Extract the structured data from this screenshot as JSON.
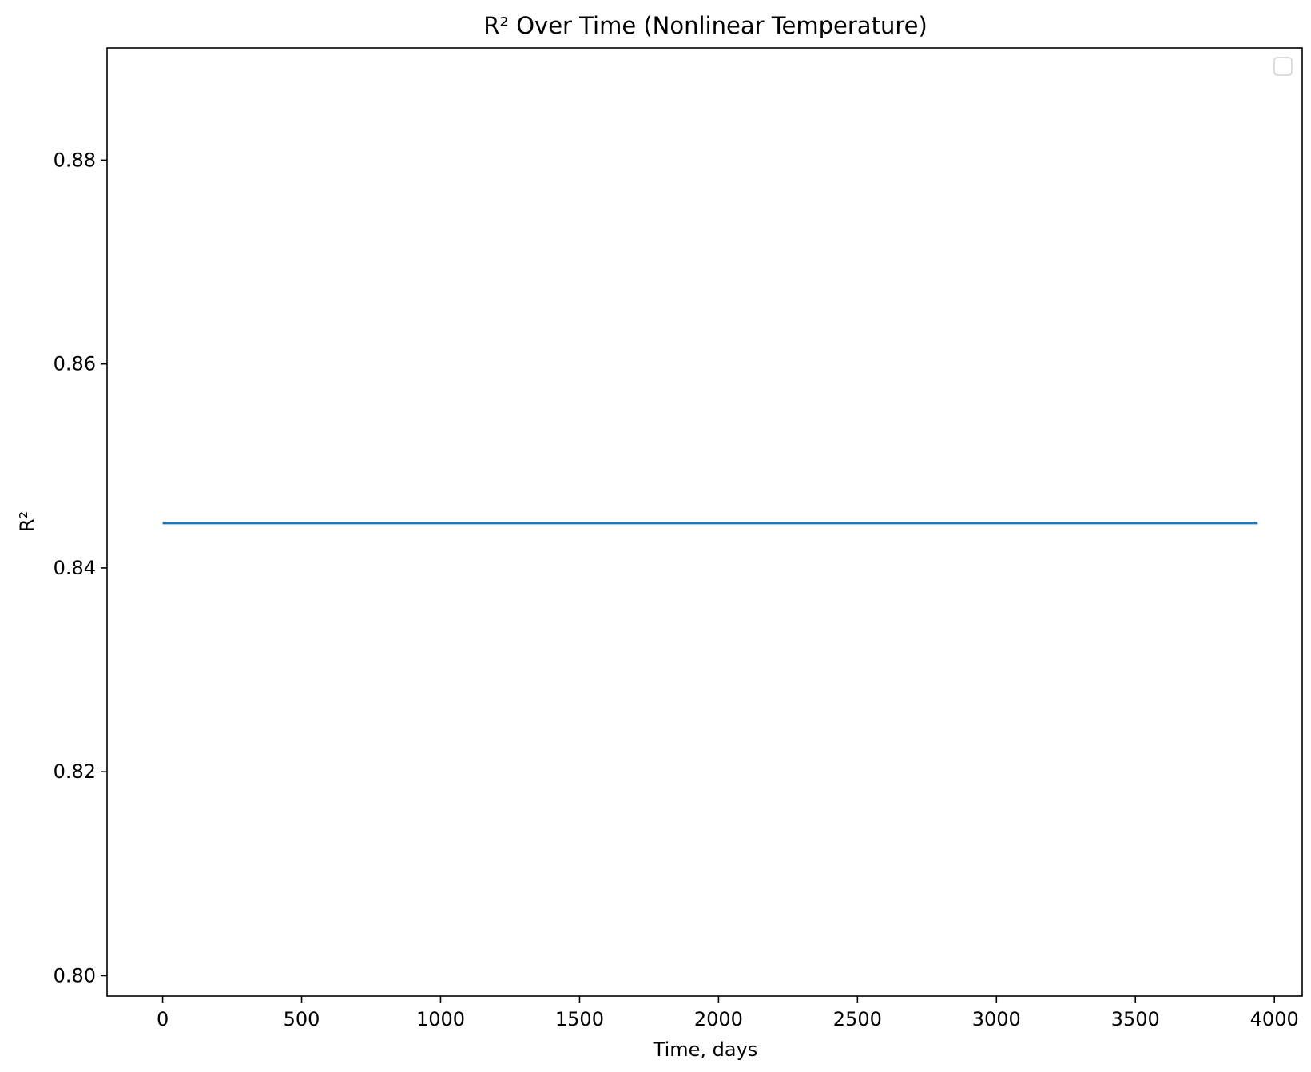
{
  "chart_data": {
    "type": "line",
    "title": "R² Over Time (Nonlinear Temperature)",
    "xlabel": "Time, days",
    "ylabel": "R²",
    "xlim": [
      -200,
      4100
    ],
    "ylim": [
      0.798,
      0.891
    ],
    "x_ticks": [
      0,
      500,
      1000,
      1500,
      2000,
      2500,
      3000,
      3500,
      4000
    ],
    "x_tick_labels": [
      "0",
      "500",
      "1000",
      "1500",
      "2000",
      "2500",
      "3000",
      "3500",
      "4000"
    ],
    "y_ticks": [
      0.8,
      0.82,
      0.84,
      0.86,
      0.88
    ],
    "y_tick_labels": [
      "0.80",
      "0.82",
      "0.84",
      "0.86",
      "0.88"
    ],
    "grid": false,
    "legend": "top-right",
    "legend_entries": [],
    "series": [
      {
        "color": "#1f77b4",
        "x": [
          0,
          3940
        ],
        "y": [
          0.8444,
          0.8444
        ]
      }
    ]
  }
}
